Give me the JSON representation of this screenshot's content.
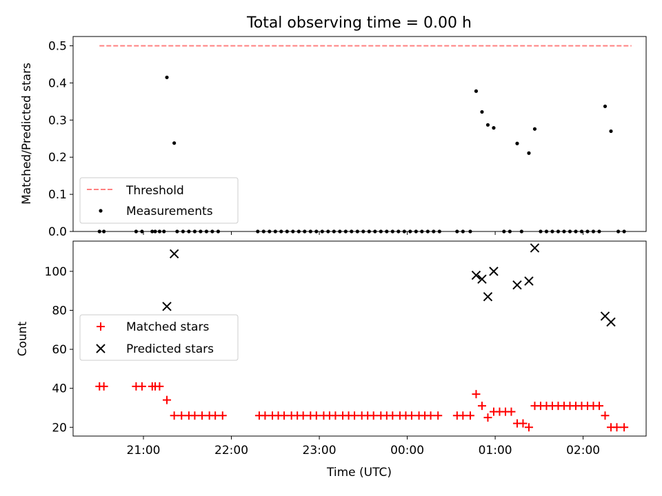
{
  "chart_data": [
    {
      "type": "scatter",
      "title": "Total observing time = 0.00 h",
      "ylabel": "Matched/Predicted stars",
      "xlabel": "",
      "ylim": [
        0,
        0.525
      ],
      "yticks": [
        "0.0",
        "0.1",
        "0.2",
        "0.3",
        "0.4",
        "0.5"
      ],
      "legend": {
        "placement": "lower-left",
        "entries": [
          "Threshold",
          "Measurements"
        ]
      },
      "threshold": {
        "name": "Threshold",
        "value": 0.5,
        "x_start": "20:30",
        "x_end": "02:33",
        "color": "#ff7f7f",
        "style": "dashed"
      },
      "series": [
        {
          "name": "Measurements",
          "marker": "dot",
          "color": "#000000",
          "points": [
            [
              "20:30",
              0
            ],
            [
              "20:33",
              0
            ],
            [
              "20:55",
              0
            ],
            [
              "20:59",
              0
            ],
            [
              "21:06",
              0
            ],
            [
              "21:08",
              0
            ],
            [
              "21:11",
              0
            ],
            [
              "21:14",
              0
            ],
            [
              "21:16",
              0.415
            ],
            [
              "21:21",
              0.238
            ],
            [
              "21:23",
              0
            ],
            [
              "21:27",
              0
            ],
            [
              "21:31",
              0
            ],
            [
              "21:35",
              0
            ],
            [
              "21:39",
              0
            ],
            [
              "21:43",
              0
            ],
            [
              "21:47",
              0
            ],
            [
              "21:51",
              0
            ],
            [
              "22:18",
              0
            ],
            [
              "22:22",
              0
            ],
            [
              "22:26",
              0
            ],
            [
              "22:30",
              0
            ],
            [
              "22:34",
              0
            ],
            [
              "22:38",
              0
            ],
            [
              "22:42",
              0
            ],
            [
              "22:46",
              0
            ],
            [
              "22:50",
              0
            ],
            [
              "22:54",
              0
            ],
            [
              "22:58",
              0
            ],
            [
              "23:02",
              0
            ],
            [
              "23:06",
              0
            ],
            [
              "23:10",
              0
            ],
            [
              "23:14",
              0
            ],
            [
              "23:18",
              0
            ],
            [
              "23:22",
              0
            ],
            [
              "23:26",
              0
            ],
            [
              "23:30",
              0
            ],
            [
              "23:34",
              0
            ],
            [
              "23:38",
              0
            ],
            [
              "23:42",
              0
            ],
            [
              "23:46",
              0
            ],
            [
              "23:50",
              0
            ],
            [
              "23:54",
              0
            ],
            [
              "23:58",
              0
            ],
            [
              "00:02",
              0
            ],
            [
              "00:06",
              0
            ],
            [
              "00:10",
              0
            ],
            [
              "00:14",
              0
            ],
            [
              "00:18",
              0
            ],
            [
              "00:22",
              0
            ],
            [
              "00:34",
              0
            ],
            [
              "00:38",
              0
            ],
            [
              "00:43",
              0
            ],
            [
              "00:47",
              0.378
            ],
            [
              "00:51",
              0.322
            ],
            [
              "00:55",
              0.287
            ],
            [
              "00:59",
              0.279
            ],
            [
              "01:06",
              0
            ],
            [
              "01:10",
              0
            ],
            [
              "01:15",
              0.237
            ],
            [
              "01:18",
              0
            ],
            [
              "01:23",
              0.211
            ],
            [
              "01:27",
              0.276
            ],
            [
              "01:31",
              0
            ],
            [
              "01:35",
              0
            ],
            [
              "01:39",
              0
            ],
            [
              "01:43",
              0
            ],
            [
              "01:47",
              0
            ],
            [
              "01:51",
              0
            ],
            [
              "01:55",
              0
            ],
            [
              "01:59",
              0
            ],
            [
              "02:03",
              0
            ],
            [
              "02:07",
              0
            ],
            [
              "02:11",
              0
            ],
            [
              "02:15",
              0.337
            ],
            [
              "02:19",
              0.27
            ],
            [
              "02:24",
              0
            ],
            [
              "02:28",
              0
            ]
          ]
        }
      ]
    },
    {
      "type": "scatter",
      "title": "",
      "ylabel": "Count",
      "xlabel": "Time (UTC)",
      "ylim": [
        15.5,
        115.5
      ],
      "yticks": [
        "20",
        "40",
        "60",
        "80",
        "100"
      ],
      "xlim": [
        "20:12",
        "02:43"
      ],
      "xticks": [
        "21:00",
        "22:00",
        "23:00",
        "00:00",
        "01:00",
        "02:00"
      ],
      "legend": {
        "placement": "center-left",
        "entries": [
          "Matched stars",
          "Predicted stars"
        ]
      },
      "series": [
        {
          "name": "Matched stars",
          "marker": "plus",
          "color": "#ff0000",
          "points": [
            [
              "20:30",
              41
            ],
            [
              "20:33",
              41
            ],
            [
              "20:55",
              41
            ],
            [
              "20:59",
              41
            ],
            [
              "21:06",
              41
            ],
            [
              "21:08",
              41
            ],
            [
              "21:11",
              41
            ],
            [
              "21:16",
              34
            ],
            [
              "21:21",
              26
            ],
            [
              "21:26",
              26
            ],
            [
              "21:31",
              26
            ],
            [
              "21:35",
              26
            ],
            [
              "21:40",
              26
            ],
            [
              "21:45",
              26
            ],
            [
              "21:49",
              26
            ],
            [
              "21:54",
              26
            ],
            [
              "22:19",
              26
            ],
            [
              "22:23",
              26
            ],
            [
              "22:28",
              26
            ],
            [
              "22:32",
              26
            ],
            [
              "22:36",
              26
            ],
            [
              "22:41",
              26
            ],
            [
              "22:45",
              26
            ],
            [
              "22:49",
              26
            ],
            [
              "22:54",
              26
            ],
            [
              "22:58",
              26
            ],
            [
              "23:03",
              26
            ],
            [
              "23:07",
              26
            ],
            [
              "23:11",
              26
            ],
            [
              "23:16",
              26
            ],
            [
              "23:20",
              26
            ],
            [
              "23:24",
              26
            ],
            [
              "23:29",
              26
            ],
            [
              "23:33",
              26
            ],
            [
              "23:37",
              26
            ],
            [
              "23:42",
              26
            ],
            [
              "23:46",
              26
            ],
            [
              "23:50",
              26
            ],
            [
              "23:55",
              26
            ],
            [
              "23:59",
              26
            ],
            [
              "00:03",
              26
            ],
            [
              "00:08",
              26
            ],
            [
              "00:12",
              26
            ],
            [
              "00:16",
              26
            ],
            [
              "00:21",
              26
            ],
            [
              "00:34",
              26
            ],
            [
              "00:38",
              26
            ],
            [
              "00:43",
              26
            ],
            [
              "00:47",
              37
            ],
            [
              "00:51",
              31
            ],
            [
              "00:55",
              25
            ],
            [
              "00:59",
              28
            ],
            [
              "01:03",
              28
            ],
            [
              "01:07",
              28
            ],
            [
              "01:11",
              28
            ],
            [
              "01:15",
              22
            ],
            [
              "01:19",
              22
            ],
            [
              "01:23",
              20
            ],
            [
              "01:27",
              31
            ],
            [
              "01:31",
              31
            ],
            [
              "01:35",
              31
            ],
            [
              "01:39",
              31
            ],
            [
              "01:43",
              31
            ],
            [
              "01:47",
              31
            ],
            [
              "01:51",
              31
            ],
            [
              "01:55",
              31
            ],
            [
              "01:59",
              31
            ],
            [
              "02:03",
              31
            ],
            [
              "02:07",
              31
            ],
            [
              "02:11",
              31
            ],
            [
              "02:15",
              26
            ],
            [
              "02:19",
              20
            ],
            [
              "02:23",
              20
            ],
            [
              "02:28",
              20
            ]
          ]
        },
        {
          "name": "Predicted stars",
          "marker": "x",
          "color": "#000000",
          "points": [
            [
              "21:16",
              82
            ],
            [
              "21:21",
              109
            ],
            [
              "00:47",
              98
            ],
            [
              "00:51",
              96
            ],
            [
              "00:55",
              87
            ],
            [
              "00:59",
              100
            ],
            [
              "01:15",
              93
            ],
            [
              "01:23",
              95
            ],
            [
              "01:27",
              112
            ],
            [
              "02:15",
              77
            ],
            [
              "02:19",
              74
            ]
          ]
        }
      ]
    }
  ]
}
